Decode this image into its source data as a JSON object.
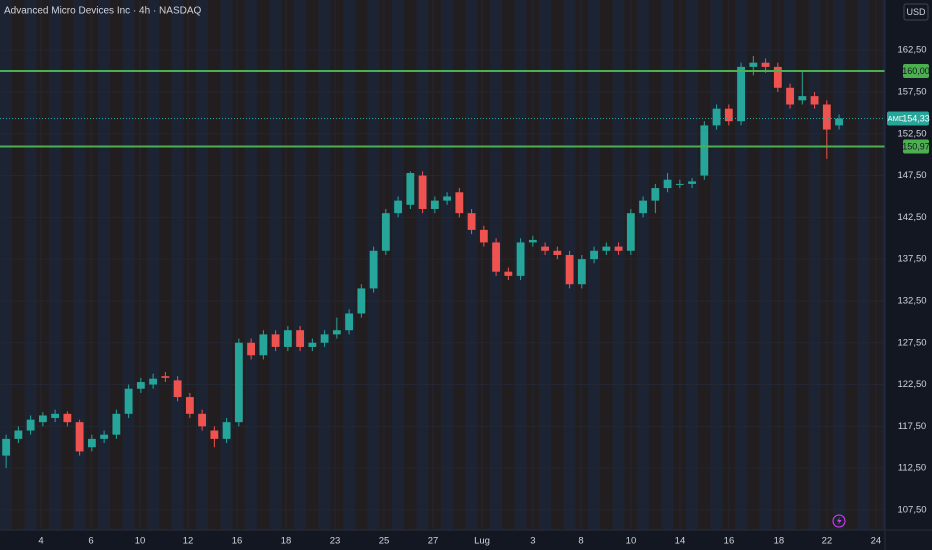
{
  "chart_data": {
    "type": "candlestick",
    "title": "Advanced Micro Devices Inc · 4h · NASDAQ",
    "currency": "USD",
    "up_color": "#26a69a",
    "down_color": "#ef5350",
    "level_color": "#4caf50",
    "grid": true,
    "xlim": [
      -0.5,
      71.75
    ],
    "xticks": [
      {
        "value": 2.85,
        "label": "4"
      },
      {
        "value": 6.93,
        "label": "6"
      },
      {
        "value": 10.93,
        "label": "10"
      },
      {
        "value": 14.85,
        "label": "12"
      },
      {
        "value": 18.85,
        "label": "16"
      },
      {
        "value": 22.85,
        "label": "18"
      },
      {
        "value": 26.85,
        "label": "23"
      },
      {
        "value": 30.85,
        "label": "25"
      },
      {
        "value": 34.85,
        "label": "27"
      },
      {
        "value": 38.85,
        "label": "Lug"
      },
      {
        "value": 43.01,
        "label": "3"
      },
      {
        "value": 46.93,
        "label": "8"
      },
      {
        "value": 51.01,
        "label": "10"
      },
      {
        "value": 55.01,
        "label": "14"
      },
      {
        "value": 59.01,
        "label": "16"
      },
      {
        "value": 63.09,
        "label": "18"
      },
      {
        "value": 67.01,
        "label": "22"
      },
      {
        "value": 71.01,
        "label": "24"
      }
    ],
    "ylim": [
      105.1,
      168.5
    ],
    "yticks": [
      {
        "value": 107.5,
        "label": "107,50"
      },
      {
        "value": 112.5,
        "label": "112,50"
      },
      {
        "value": 117.5,
        "label": "117,50"
      },
      {
        "value": 122.5,
        "label": "122,50"
      },
      {
        "value": 127.5,
        "label": "127,50"
      },
      {
        "value": 132.5,
        "label": "132,50"
      },
      {
        "value": 137.5,
        "label": "137,50"
      },
      {
        "value": 142.5,
        "label": "142,50"
      },
      {
        "value": 147.5,
        "label": "147,50"
      },
      {
        "value": 152.5,
        "label": "152,50"
      },
      {
        "value": 157.5,
        "label": "157,50"
      },
      {
        "value": 162.5,
        "label": "162,50"
      }
    ],
    "levels": [
      {
        "value": 160,
        "label": "160,00"
      },
      {
        "value": 150.97,
        "label": "150,97"
      }
    ],
    "last_price": {
      "symbol": "AMD",
      "value": 154.33,
      "label": "154,33"
    },
    "open": [
      114,
      116,
      117,
      118,
      118.5,
      119,
      118,
      115,
      116,
      116.5,
      119,
      122,
      122.5,
      123.5,
      123,
      121,
      119,
      117,
      116,
      118,
      127.5,
      126,
      128.5,
      127,
      129,
      127,
      127.5,
      128.5,
      129,
      131,
      134,
      138.5,
      143,
      144,
      147.5,
      143.5,
      144.5,
      145.5,
      143,
      141,
      139.5,
      136,
      135.5,
      139.5,
      139,
      138.5,
      138,
      134.5,
      137.5,
      138.5,
      139,
      138.5,
      143,
      144.5,
      146,
      146.5,
      146.5,
      147.5,
      153.5,
      155.5,
      154,
      160.5,
      161,
      160.5,
      158,
      156.5,
      157,
      156,
      153.5
    ],
    "high": [
      116.5,
      117.5,
      118.8,
      119.2,
      119.5,
      119.3,
      118.3,
      116.5,
      117,
      119.5,
      122.5,
      123.3,
      123.8,
      124,
      123.5,
      121.5,
      119.5,
      117.5,
      118.5,
      128,
      128,
      129,
      129,
      129.5,
      129.5,
      128,
      129,
      130.5,
      131.5,
      134.5,
      139,
      143.5,
      145,
      148,
      148,
      145,
      145.5,
      146,
      143.5,
      141.5,
      140,
      136.5,
      140,
      140.3,
      139.5,
      139,
      138.5,
      138,
      139,
      139.5,
      139.5,
      143.5,
      145,
      146.5,
      147.8,
      147,
      147.2,
      154,
      156,
      156,
      161,
      161.8,
      161.5,
      161,
      158.5,
      160,
      157.5,
      156.5,
      154.8
    ],
    "low": [
      112.5,
      115.5,
      116.5,
      117.5,
      118,
      117.5,
      114,
      114.5,
      115.5,
      116,
      118.5,
      121.5,
      122,
      122.8,
      120.5,
      118.5,
      117,
      115,
      115.5,
      117.5,
      125.5,
      125.5,
      126.5,
      126.5,
      126.5,
      126.5,
      127,
      128,
      128.5,
      130.5,
      133.5,
      138,
      142.5,
      143.5,
      143,
      143,
      144,
      142.5,
      140.5,
      139,
      135.5,
      135,
      135,
      139,
      138,
      137.5,
      134,
      134,
      137,
      138,
      138,
      138,
      142.5,
      143,
      145.5,
      146,
      146,
      147,
      153,
      153.5,
      153.5,
      159.5,
      159.8,
      157.5,
      155.5,
      156,
      155.5,
      149.5,
      153
    ],
    "close": [
      116,
      117,
      118.3,
      118.8,
      119,
      118,
      114.5,
      116,
      116.5,
      119,
      122,
      122.8,
      123.2,
      123.3,
      121,
      119,
      117.5,
      116,
      118,
      127.5,
      126,
      128.5,
      127,
      129,
      127,
      127.5,
      128.5,
      129,
      131,
      134,
      138.5,
      143,
      144.5,
      147.8,
      143.5,
      144.5,
      145,
      143,
      141,
      139.5,
      136,
      135.5,
      139.5,
      139.8,
      138.5,
      138,
      134.5,
      137.5,
      138.5,
      139,
      138.5,
      143,
      144.5,
      146,
      147,
      146.5,
      146.8,
      153.5,
      155.5,
      154,
      160.5,
      161,
      160.5,
      158,
      156,
      157,
      156,
      153,
      154.33
    ]
  }
}
